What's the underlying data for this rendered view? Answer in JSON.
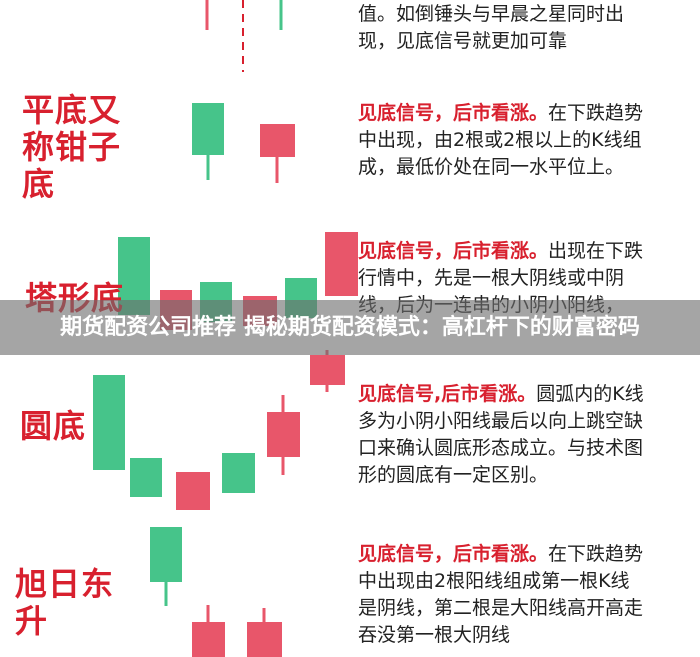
{
  "rows": [
    {
      "text": "值。如倒锤头与早晨之星同时出现，见底信号就更加可靠"
    },
    {
      "title": "平底又称钳子底",
      "lead": "见底信号，后市看涨。",
      "text": "在下跌趋势中出现，由2根或2根以上的K线组成，最低价处在同一水平位上。"
    },
    {
      "title": "塔形底",
      "lead": "见底信号，后市看涨。",
      "text": "出现在下跌行情中，先是一根大阴线或中阴线，后为一连串的小阴小阳线，"
    },
    {
      "title": "圆底",
      "lead": "见底信号,后市看涨。",
      "text": "圆弧内的K线多为小阴小阳线最后以向上跳空缺口来确认圆底形态成立。与技术图形的圆底有一定区别。"
    },
    {
      "title": "旭日东升",
      "lead": "见底信号，后市看涨。",
      "text": "在下跌趋势中出现由2根阳线组成第一根K线是阴线，第二根是大阳线高开高走吞没第一根大阴线"
    }
  ],
  "banner": "期货配资公司推荐 揭秘期货配资模式：高杠杆下的财富密码"
}
